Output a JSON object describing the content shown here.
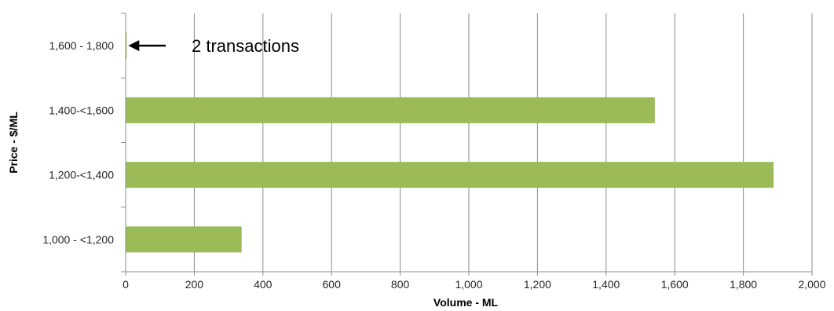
{
  "chart_data": {
    "type": "bar",
    "orientation": "horizontal",
    "categories": [
      "1,000 - <1,200",
      "1,200-<1,400",
      "1,400-<1,600",
      "1,600 - 1,800"
    ],
    "values": [
      338,
      1888,
      1542,
      3
    ],
    "xlabel": "Volume - ML",
    "ylabel": "Price - $/ML",
    "xlim": [
      0,
      2000
    ],
    "xticks": [
      0,
      200,
      400,
      600,
      800,
      1000,
      1200,
      1400,
      1600,
      1800,
      2000
    ],
    "xtick_labels": [
      "0",
      "200",
      "400",
      "600",
      "800",
      "1,000",
      "1,200",
      "1,400",
      "1,600",
      "1,800",
      "2,000"
    ],
    "grid": "vertical",
    "bar_color": "#9BBB59",
    "annotation": {
      "text": "2 transactions",
      "category": "1,600 - 1,800",
      "arrow": "left"
    }
  }
}
